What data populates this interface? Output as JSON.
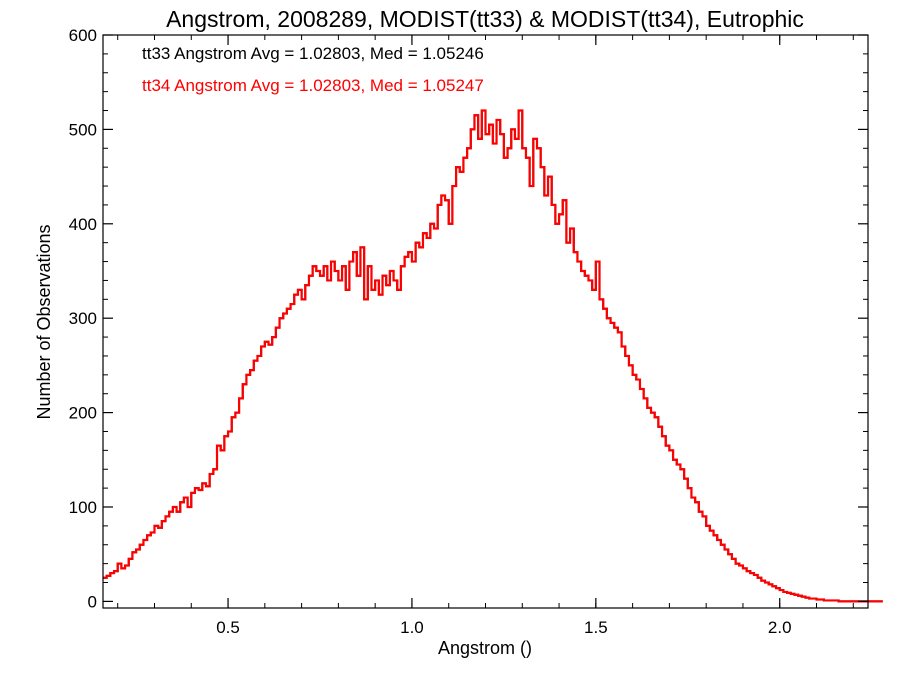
{
  "chart_data": {
    "type": "histogram-step",
    "title": "Angstrom, 2008289, MODIST(tt33) & MODIST(tt34), Eutrophic",
    "xlabel": "Angstrom ()",
    "ylabel": "Number of Observations",
    "xlim": [
      0.16,
      2.24
    ],
    "ylim": [
      -7,
      600
    ],
    "xticks": [
      0.5,
      1.0,
      1.5,
      2.0
    ],
    "xtick_labels": [
      "0.5",
      "1.0",
      "1.5",
      "2.0"
    ],
    "yticks": [
      0,
      100,
      200,
      300,
      400,
      500,
      600
    ],
    "ytick_labels": [
      "0",
      "100",
      "200",
      "300",
      "400",
      "500",
      "600"
    ],
    "bin_width": 0.01,
    "x_start": 0.16,
    "annotations": [
      {
        "text": "tt33 Angstrom Avg = 1.02803, Med = 1.05246",
        "color": "#000000"
      },
      {
        "text": "tt34 Angstrom Avg = 1.02803, Med = 1.05247",
        "color": "#ff0000"
      }
    ],
    "series": [
      {
        "name": "tt33",
        "color": "#000000",
        "values": [
          25,
          27,
          30,
          32,
          40,
          35,
          38,
          45,
          52,
          55,
          60,
          65,
          70,
          73,
          80,
          78,
          85,
          90,
          95,
          100,
          95,
          105,
          110,
          100,
          115,
          120,
          118,
          125,
          122,
          135,
          140,
          165,
          160,
          175,
          180,
          195,
          200,
          215,
          230,
          240,
          245,
          255,
          260,
          270,
          275,
          272,
          280,
          290,
          300,
          305,
          310,
          315,
          325,
          330,
          320,
          335,
          345,
          355,
          350,
          345,
          355,
          340,
          360,
          350,
          340,
          355,
          330,
          360,
          370,
          345,
          375,
          320,
          355,
          330,
          340,
          325,
          345,
          335,
          350,
          340,
          330,
          355,
          365,
          370,
          360,
          380,
          375,
          390,
          385,
          400,
          395,
          420,
          430,
          425,
          400,
          440,
          460,
          455,
          470,
          480,
          500,
          515,
          490,
          520,
          495,
          505,
          485,
          510,
          495,
          470,
          480,
          500,
          490,
          520,
          480,
          470,
          440,
          490,
          480,
          460,
          430,
          450,
          420,
          400,
          410,
          425,
          380,
          395,
          370,
          360,
          350,
          345,
          340,
          330,
          360,
          320,
          310,
          300,
          295,
          290,
          285,
          270,
          260,
          250,
          240,
          235,
          225,
          215,
          205,
          200,
          195,
          185,
          175,
          165,
          160,
          150,
          145,
          140,
          130,
          120,
          110,
          105,
          95,
          90,
          80,
          75,
          70,
          65,
          60,
          55,
          50,
          45,
          40,
          38,
          35,
          32,
          30,
          28,
          25,
          22,
          20,
          18,
          16,
          14,
          12,
          10,
          9,
          8,
          7,
          6,
          5,
          4,
          3,
          3,
          2,
          2,
          1,
          1,
          1,
          1,
          0,
          0,
          0,
          0,
          0,
          0,
          0,
          0,
          0,
          0,
          0,
          0
        ]
      },
      {
        "name": "tt34",
        "color": "#ff0000",
        "values": [
          25,
          27,
          30,
          32,
          40,
          35,
          38,
          45,
          52,
          55,
          60,
          65,
          70,
          73,
          80,
          78,
          85,
          90,
          95,
          100,
          95,
          105,
          110,
          100,
          115,
          120,
          118,
          125,
          122,
          135,
          140,
          165,
          160,
          175,
          180,
          195,
          200,
          215,
          230,
          240,
          245,
          255,
          260,
          270,
          275,
          272,
          280,
          290,
          300,
          305,
          310,
          315,
          325,
          330,
          320,
          335,
          345,
          355,
          350,
          345,
          355,
          340,
          360,
          350,
          340,
          355,
          330,
          360,
          370,
          345,
          375,
          320,
          355,
          330,
          340,
          325,
          345,
          335,
          350,
          340,
          330,
          355,
          365,
          370,
          360,
          380,
          375,
          390,
          385,
          400,
          395,
          420,
          430,
          425,
          400,
          440,
          460,
          455,
          470,
          480,
          500,
          515,
          490,
          520,
          495,
          505,
          485,
          510,
          495,
          470,
          480,
          500,
          490,
          520,
          480,
          470,
          440,
          490,
          480,
          460,
          430,
          450,
          420,
          400,
          410,
          425,
          380,
          395,
          370,
          360,
          350,
          345,
          340,
          330,
          360,
          320,
          310,
          300,
          295,
          290,
          285,
          270,
          260,
          250,
          240,
          235,
          225,
          215,
          205,
          200,
          195,
          185,
          175,
          165,
          160,
          150,
          145,
          140,
          130,
          120,
          110,
          105,
          95,
          90,
          80,
          75,
          70,
          65,
          60,
          55,
          50,
          45,
          40,
          38,
          35,
          32,
          30,
          28,
          25,
          22,
          20,
          18,
          16,
          14,
          12,
          10,
          9,
          8,
          7,
          6,
          5,
          4,
          3,
          3,
          2,
          2,
          1,
          1,
          1,
          1,
          0,
          0,
          0,
          0,
          0,
          0,
          0,
          0,
          0,
          0,
          0,
          0
        ]
      }
    ]
  }
}
